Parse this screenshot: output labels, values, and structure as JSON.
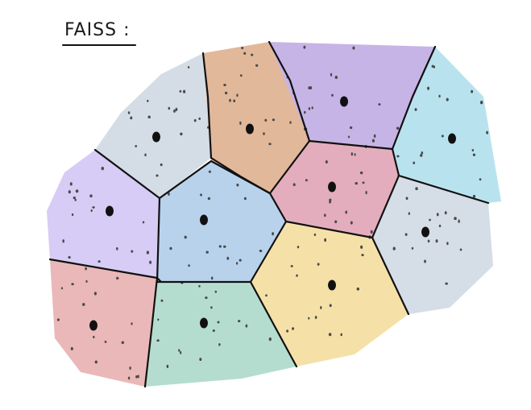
{
  "title": "FAISS :",
  "cells": [
    {
      "id": "top-left",
      "color": "#d4dde6",
      "centroid": [
        194,
        170
      ]
    },
    {
      "id": "top-center",
      "color": "#e2b89a",
      "centroid": [
        310,
        160
      ]
    },
    {
      "id": "top-purple",
      "color": "#c7b4e6",
      "centroid": [
        427,
        126
      ]
    },
    {
      "id": "top-right",
      "color": "#b8e3ee",
      "centroid": [
        561,
        172
      ]
    },
    {
      "id": "left-lavender",
      "color": "#d6ccf5",
      "centroid": [
        136,
        262
      ]
    },
    {
      "id": "center-blue",
      "color": "#b8d2ec",
      "centroid": [
        253,
        273
      ]
    },
    {
      "id": "center-pink",
      "color": "#e4adbd",
      "centroid": [
        412,
        232
      ]
    },
    {
      "id": "right-gray",
      "color": "#d5dde6",
      "centroid": [
        528,
        288
      ]
    },
    {
      "id": "bottom-left-red",
      "color": "#eab8b8",
      "centroid": [
        116,
        404
      ]
    },
    {
      "id": "bottom-green",
      "color": "#b5ddcf",
      "centroid": [
        253,
        401
      ]
    },
    {
      "id": "bottom-yellow",
      "color": "#f5e1a8",
      "centroid": [
        412,
        354
      ]
    }
  ]
}
